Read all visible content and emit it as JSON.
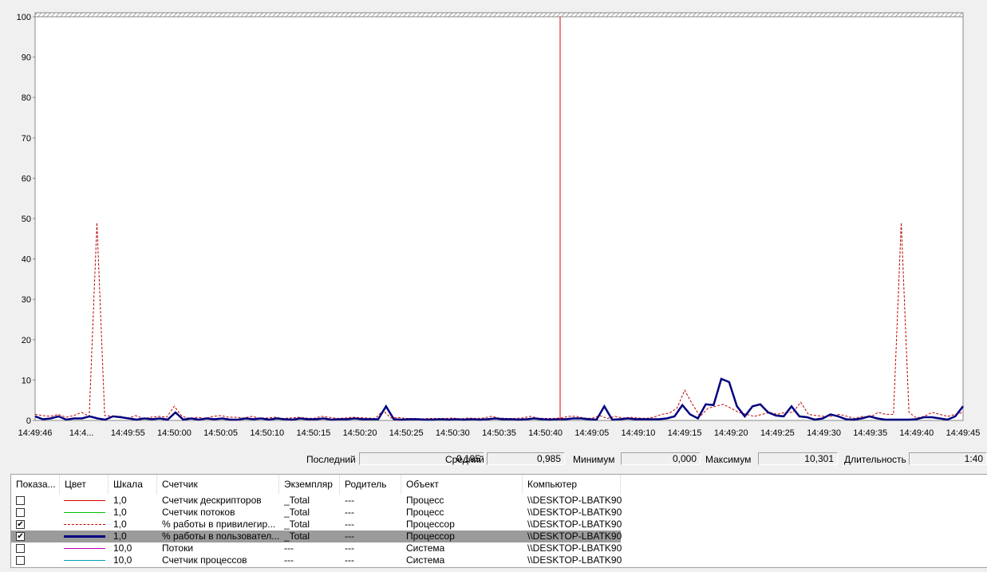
{
  "chart_data": {
    "type": "line",
    "ylim": [
      0,
      100
    ],
    "y_ticks": [
      0,
      10,
      20,
      30,
      40,
      50,
      60,
      70,
      80,
      90,
      100
    ],
    "x_tick_labels": [
      "14:49:46",
      "14:4...",
      "14:49:55",
      "14:50:00",
      "14:50:05",
      "14:50:10",
      "14:50:15",
      "14:50:20",
      "14:50:25",
      "14:50:30",
      "14:50:35",
      "14:50:40",
      "14:49:05",
      "14:49:10",
      "14:49:15",
      "14:49:20",
      "14:49:25",
      "14:49:30",
      "14:49:35",
      "14:49:40",
      "14:49:45"
    ],
    "grid": false,
    "current_position_marker": true,
    "series": [
      {
        "name": "% работы в привилегир...",
        "color": "#c00000",
        "style": "dashed",
        "values": [
          1.5,
          1.2,
          1.0,
          1.5,
          0.8,
          1.2,
          2.0,
          1.0,
          49,
          1.2,
          1.0,
          1.0,
          0.5,
          1.2,
          0.5,
          0.8,
          1.0,
          0.8,
          3.5,
          1.0,
          0.5,
          0.8,
          0.5,
          1.0,
          1.2,
          0.8,
          0.8,
          0.6,
          1.0,
          0.6,
          0.6,
          0.8,
          0.5,
          0.6,
          0.8,
          0.6,
          0.5,
          1.0,
          0.8,
          0.5,
          0.6,
          0.8,
          0.7,
          0.6,
          0.5,
          2.5,
          0.6,
          0.7,
          0.5,
          0.5,
          0.4,
          0.5,
          0.5,
          0.5,
          0.6,
          0.4,
          0.6,
          0.5,
          0.6,
          1.0,
          0.6,
          0.5,
          0.5,
          0.6,
          1.0,
          0.6,
          0.5,
          0.5,
          0.6,
          1.0,
          1.0,
          0.6,
          0.5,
          1.2,
          0.5,
          1.0,
          0.6,
          0.8,
          0.6,
          0.5,
          0.8,
          1.5,
          1.8,
          3.0,
          7.5,
          4.0,
          1.0,
          3.0,
          3.5,
          4.0,
          3.0,
          2.0,
          1.5,
          1.0,
          1.5,
          2.0,
          1.5,
          2.0,
          2.0,
          4.5,
          1.5,
          1.2,
          1.0,
          1.0,
          1.5,
          1.0,
          0.5,
          1.0,
          0.8,
          2.0,
          1.5,
          1.5,
          49,
          2.0,
          0.6,
          1.0,
          2.0,
          1.5,
          1.0,
          1.5,
          2.0
        ],
        "display": true
      },
      {
        "name": "% работы в пользовател...",
        "color": "#000080",
        "style": "bold",
        "values": [
          1.0,
          0.3,
          0.5,
          1.0,
          0.2,
          0.5,
          0.5,
          1.0,
          0.5,
          0.2,
          1.0,
          0.8,
          0.5,
          0.2,
          0.5,
          0.3,
          0.5,
          0.2,
          2.0,
          0.2,
          0.5,
          0.2,
          0.5,
          0.3,
          0.5,
          0.2,
          0.2,
          0.5,
          0.3,
          0.5,
          0.2,
          0.5,
          0.3,
          0.2,
          0.5,
          0.3,
          0.3,
          0.5,
          0.2,
          0.3,
          0.3,
          0.5,
          0.3,
          0.3,
          0.3,
          3.5,
          0.3,
          0.2,
          0.3,
          0.3,
          0.2,
          0.2,
          0.3,
          0.2,
          0.3,
          0.2,
          0.3,
          0.2,
          0.3,
          0.5,
          0.3,
          0.3,
          0.2,
          0.3,
          0.5,
          0.3,
          0.2,
          0.3,
          0.3,
          0.5,
          0.5,
          0.3,
          0.2,
          3.5,
          0.2,
          0.3,
          0.5,
          0.3,
          0.3,
          0.3,
          0.3,
          0.5,
          1.0,
          3.8,
          1.5,
          0.5,
          4.0,
          3.8,
          10.3,
          9.5,
          3.5,
          1.0,
          3.5,
          4.0,
          2.0,
          1.2,
          1.0,
          3.5,
          1.0,
          0.8,
          0.2,
          0.5,
          1.5,
          1.0,
          0.3,
          0.2,
          0.5,
          1.0,
          0.5,
          0.2,
          0.2,
          0.2,
          0.2,
          0.3,
          0.8,
          0.8,
          0.5,
          0.2,
          1.0,
          3.5
        ],
        "display": true
      }
    ]
  },
  "stats": {
    "last_label": "Последний",
    "last_value": "0,195",
    "avg_label": "Средний",
    "avg_value": "0,985",
    "min_label": "Минимум",
    "min_value": "0,000",
    "max_label": "Максимум",
    "max_value": "10,301",
    "dur_label": "Длительность",
    "dur_value": "1:40"
  },
  "legend": {
    "columns": [
      "Показа...",
      "Цвет",
      "Шкала",
      "Счетчик",
      "Экземпляр",
      "Родитель",
      "Объект",
      "Компьютер"
    ],
    "rows": [
      {
        "checked": false,
        "color": "#e00000",
        "line": "solid",
        "scale": "1,0",
        "counter": "Счетчик дескрипторов",
        "instance": "_Total",
        "parent": "---",
        "object": "Процесс",
        "computer": "\\\\DESKTOP-LBATK90",
        "selected": false
      },
      {
        "checked": false,
        "color": "#00c000",
        "line": "solid",
        "scale": "1,0",
        "counter": "Счетчик потоков",
        "instance": "_Total",
        "parent": "---",
        "object": "Процесс",
        "computer": "\\\\DESKTOP-LBATK90",
        "selected": false
      },
      {
        "checked": true,
        "color": "#c00000",
        "line": "dashed",
        "scale": "1,0",
        "counter": "% работы в привилегир...",
        "instance": "_Total",
        "parent": "---",
        "object": "Процессор",
        "computer": "\\\\DESKTOP-LBATK90",
        "selected": false
      },
      {
        "checked": true,
        "color": "#000080",
        "line": "bold",
        "scale": "1,0",
        "counter": "% работы в пользовател...",
        "instance": "_Total",
        "parent": "---",
        "object": "Процессор",
        "computer": "\\\\DESKTOP-LBATK90",
        "selected": true
      },
      {
        "checked": false,
        "color": "#c000c0",
        "line": "solid",
        "scale": "10,0",
        "counter": "Потоки",
        "instance": "---",
        "parent": "---",
        "object": "Система",
        "computer": "\\\\DESKTOP-LBATK90",
        "selected": false
      },
      {
        "checked": false,
        "color": "#00a0c0",
        "line": "solid",
        "scale": "10,0",
        "counter": "Счетчик процессов",
        "instance": "---",
        "parent": "---",
        "object": "Система",
        "computer": "\\\\DESKTOP-LBATK90",
        "selected": false
      }
    ]
  }
}
